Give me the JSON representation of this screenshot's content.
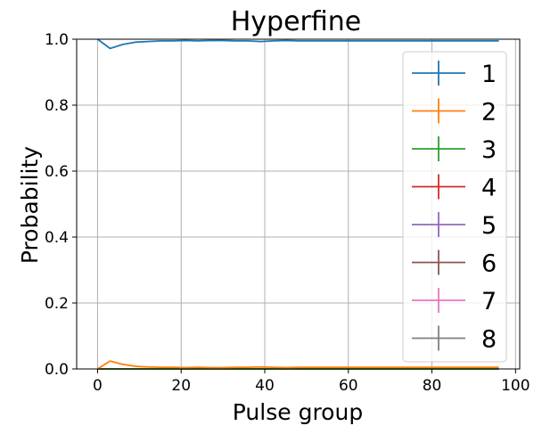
{
  "chart_data": {
    "type": "line",
    "title": "Hyperfine",
    "xlabel": "Pulse group",
    "ylabel": "Probability",
    "xlim": [
      -5,
      101
    ],
    "ylim": [
      0,
      1.0
    ],
    "xticks": [
      0,
      20,
      40,
      60,
      80,
      100
    ],
    "yticks": [
      0.0,
      0.2,
      0.4,
      0.6,
      0.8,
      1.0
    ],
    "xtick_labels": [
      "0",
      "20",
      "40",
      "60",
      "80",
      "100"
    ],
    "ytick_labels": [
      "0.0",
      "0.2",
      "0.4",
      "0.6",
      "0.8",
      "1.0"
    ],
    "grid": true,
    "legend_position": "right",
    "x": [
      0,
      3,
      6,
      9,
      12,
      15,
      18,
      21,
      24,
      27,
      30,
      33,
      36,
      39,
      42,
      45,
      48,
      51,
      54,
      57,
      60,
      63,
      66,
      69,
      72,
      75,
      78,
      81,
      84,
      87,
      90,
      93,
      96
    ],
    "series": [
      {
        "name": "1",
        "color": "#1f77b4",
        "values": [
          1.0,
          0.972,
          0.984,
          0.991,
          0.993,
          0.995,
          0.995,
          0.996,
          0.995,
          0.996,
          0.996,
          0.995,
          0.995,
          0.993,
          0.995,
          0.996,
          0.995,
          0.995,
          0.995,
          0.995,
          0.995,
          0.995,
          0.995,
          0.995,
          0.995,
          0.995,
          0.995,
          0.995,
          0.995,
          0.995,
          0.995,
          0.995,
          0.995
        ]
      },
      {
        "name": "2",
        "color": "#ff7f0e",
        "values": [
          0.0,
          0.024,
          0.014,
          0.008,
          0.006,
          0.005,
          0.005,
          0.004,
          0.005,
          0.004,
          0.004,
          0.005,
          0.005,
          0.006,
          0.005,
          0.004,
          0.005,
          0.005,
          0.005,
          0.005,
          0.005,
          0.005,
          0.005,
          0.005,
          0.005,
          0.005,
          0.005,
          0.005,
          0.005,
          0.005,
          0.005,
          0.005,
          0.005
        ]
      },
      {
        "name": "3",
        "color": "#2ca02c",
        "values": [
          0,
          0,
          0,
          0,
          0,
          0,
          0,
          0,
          0,
          0,
          0,
          0,
          0,
          0,
          0,
          0,
          0,
          0,
          0,
          0,
          0,
          0,
          0,
          0,
          0,
          0,
          0,
          0,
          0,
          0,
          0,
          0,
          0
        ]
      },
      {
        "name": "4",
        "color": "#d62728",
        "values": [
          0,
          0,
          0,
          0,
          0,
          0,
          0,
          0,
          0,
          0,
          0,
          0,
          0,
          0,
          0,
          0,
          0,
          0,
          0,
          0,
          0,
          0,
          0,
          0,
          0,
          0,
          0,
          0,
          0,
          0,
          0,
          0,
          0
        ]
      },
      {
        "name": "5",
        "color": "#9467bd",
        "values": [
          0,
          0,
          0,
          0,
          0,
          0,
          0,
          0,
          0,
          0,
          0,
          0,
          0,
          0,
          0,
          0,
          0,
          0,
          0,
          0,
          0,
          0,
          0,
          0,
          0,
          0,
          0,
          0,
          0,
          0,
          0,
          0,
          0
        ]
      },
      {
        "name": "6",
        "color": "#8c564b",
        "values": [
          0,
          0,
          0,
          0,
          0,
          0,
          0,
          0,
          0,
          0,
          0,
          0,
          0,
          0,
          0,
          0,
          0,
          0,
          0,
          0,
          0,
          0,
          0,
          0,
          0,
          0,
          0,
          0,
          0,
          0,
          0,
          0,
          0
        ]
      },
      {
        "name": "7",
        "color": "#e377c2",
        "values": [
          0,
          0,
          0,
          0,
          0,
          0,
          0,
          0,
          0,
          0,
          0,
          0,
          0,
          0,
          0,
          0,
          0,
          0,
          0,
          0,
          0,
          0,
          0,
          0,
          0,
          0,
          0,
          0,
          0,
          0,
          0,
          0,
          0
        ]
      },
      {
        "name": "8",
        "color": "#7f7f7f",
        "values": [
          0,
          0,
          0,
          0,
          0,
          0,
          0,
          0,
          0,
          0,
          0,
          0,
          0,
          0,
          0,
          0,
          0,
          0,
          0,
          0,
          0,
          0,
          0,
          0,
          0,
          0,
          0,
          0,
          0,
          0,
          0,
          0,
          0
        ]
      }
    ]
  }
}
